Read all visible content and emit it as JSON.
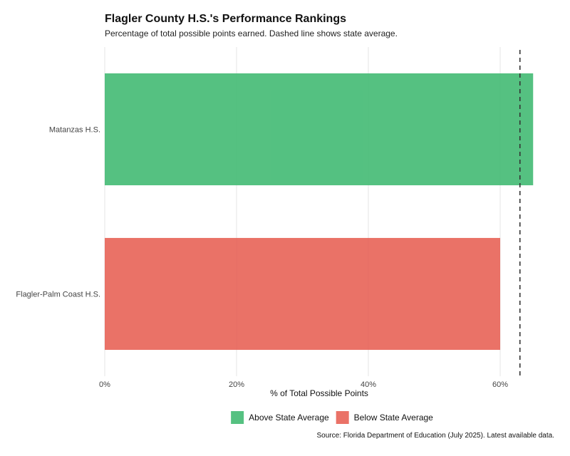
{
  "chart_data": {
    "type": "bar",
    "orientation": "horizontal",
    "title": "Flagler County H.S.'s Performance Rankings",
    "subtitle": "Percentage of total possible points earned. Dashed line shows state average.",
    "xlabel": "% of Total Possible Points",
    "ylabel": "",
    "xlim": [
      0,
      65
    ],
    "x_ticks": [
      0,
      20,
      40,
      60
    ],
    "x_tick_labels": [
      "0%",
      "20%",
      "40%",
      "60%"
    ],
    "grid": true,
    "categories": [
      "Matanzas H.S.",
      "Flagler-Palm Coast H.S."
    ],
    "values": [
      65,
      60
    ],
    "bar_groups": [
      "above",
      "below"
    ],
    "reference_line": {
      "value": 63,
      "style": "dashed",
      "label": "state average"
    },
    "legend": {
      "position": "bottom",
      "items": [
        {
          "key": "above",
          "label": "Above State Average",
          "color": "#3DB870"
        },
        {
          "key": "below",
          "label": "Below State Average",
          "color": "#E75F52"
        }
      ]
    },
    "colors": {
      "above": "#3DB870",
      "below": "#E75F52",
      "reference_line": "#333333",
      "grid": "#E5E5E5"
    },
    "source": "Source: Florida Department of Education (July 2025). Latest available data."
  }
}
